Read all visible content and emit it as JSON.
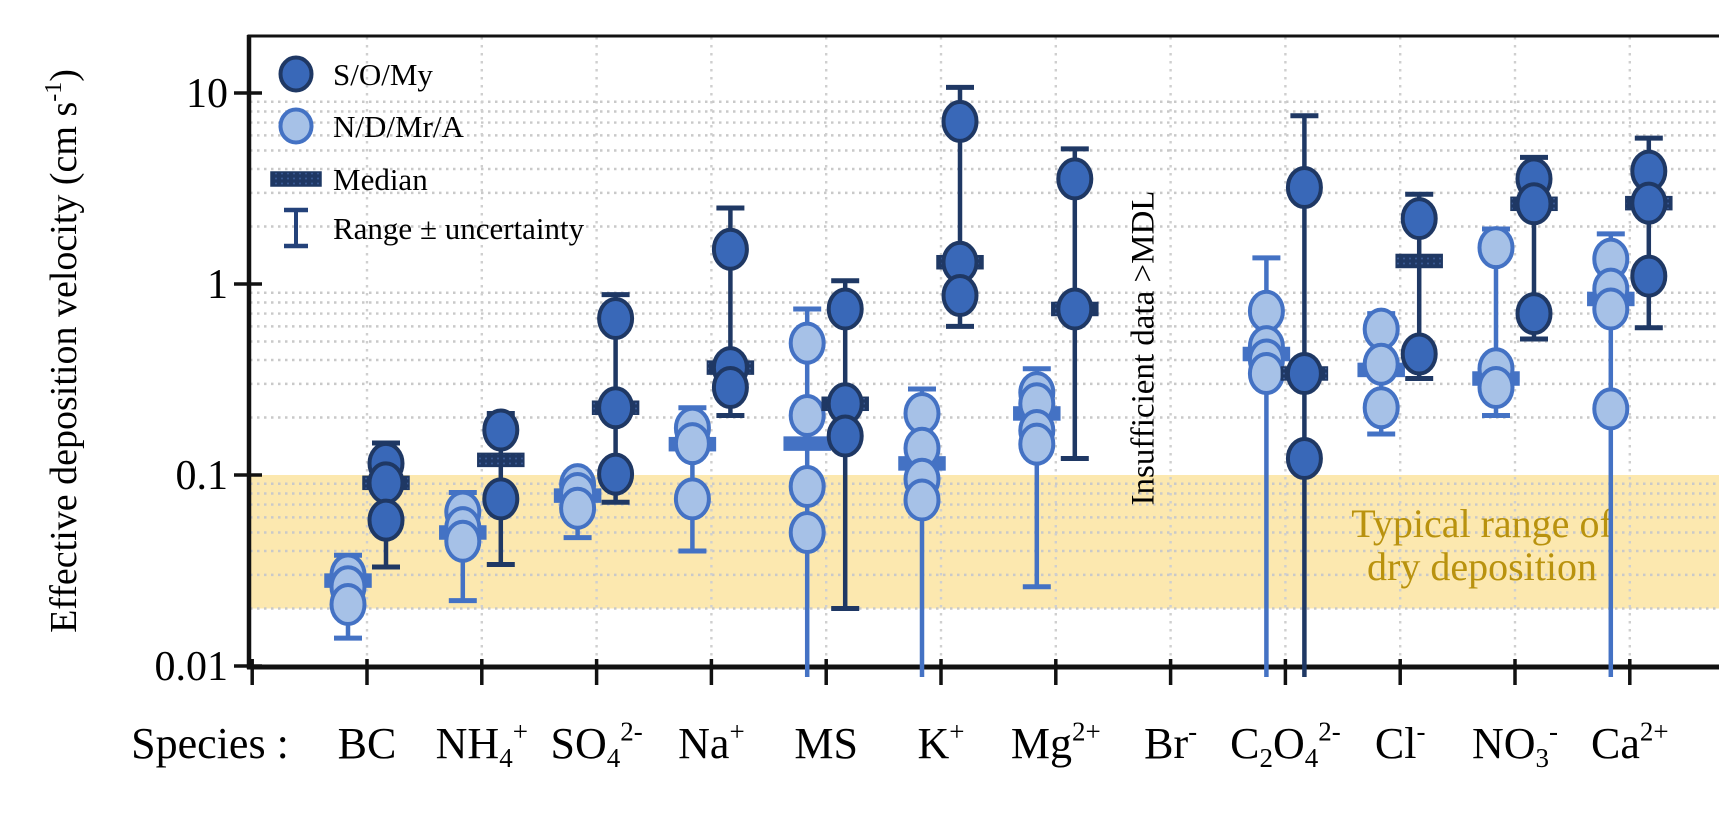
{
  "colors": {
    "dark_fill": "#3968B8",
    "dark_edge": "#1F3864",
    "light_fill": "#A6C1E7",
    "light_edge": "#4472C4",
    "median_dark": "#1F3864",
    "median_dark_dot": "#3A5A96",
    "median_light": "#4472C4",
    "band_fill": "#FCE8AF",
    "band_text": "#B9920E",
    "grid": "#C9C9C9",
    "axis": "#111111",
    "text": "#000000"
  },
  "chart_data": {
    "type": "scatter",
    "yscale": "log",
    "ylabel_plain": "Effective deposition velocity (cm s-1)",
    "ylabel_segments": [
      {
        "text": "Effective deposition velocity (cm s"
      },
      {
        "text": "-1",
        "mode": "sup"
      },
      {
        "text": ")"
      }
    ],
    "xlabel_prefix": "Species :",
    "ylim": [
      0.0095,
      20
    ],
    "yticks": [
      {
        "value": 10,
        "label": "10"
      },
      {
        "value": 1,
        "label": "1"
      },
      {
        "value": 0.1,
        "label": "0.1"
      },
      {
        "value": 0.01,
        "label": "0.01"
      }
    ],
    "grid": "log minor dotted horizontal + dotted vertical per species",
    "legend": [
      {
        "key": "dark",
        "label": "S/O/My"
      },
      {
        "key": "light",
        "label": "N/D/Mr/A"
      },
      {
        "key": "median",
        "label": "Median"
      },
      {
        "key": "range",
        "label": "Range ± uncertainty"
      }
    ],
    "band": {
      "from": 0.02,
      "to": 0.1,
      "label_line1": "Typical range of",
      "label_line2": "dry deposition"
    },
    "annotation": {
      "text": "Insufficient data >MDL",
      "species_index": 7
    },
    "series_names": {
      "dark": "S/O/My",
      "light": "N/D/Mr/A"
    },
    "species": [
      {
        "id": "bc",
        "label_plain": "BC",
        "label_segments": [
          {
            "text": "BC"
          }
        ],
        "light": {
          "points": [
            0.03,
            0.026,
            0.021
          ],
          "median": 0.028,
          "range": [
            0.014,
            0.038
          ]
        },
        "dark": {
          "points": [
            0.115,
            0.091,
            0.058
          ],
          "median": 0.091,
          "range": [
            0.033,
            0.147
          ]
        }
      },
      {
        "id": "nh4",
        "label_plain": "NH4+",
        "label_segments": [
          {
            "text": "NH"
          },
          {
            "text": "4",
            "mode": "sub"
          },
          {
            "text": "+",
            "mode": "sup"
          }
        ],
        "light": {
          "points": [
            0.064,
            0.053,
            0.045
          ],
          "median": 0.05,
          "range": [
            0.022,
            0.081
          ]
        },
        "dark": {
          "points": [
            0.172,
            0.075
          ],
          "median": 0.12,
          "range": [
            0.034,
            0.21
          ]
        }
      },
      {
        "id": "so4",
        "label_plain": "SO42-",
        "label_segments": [
          {
            "text": "SO"
          },
          {
            "text": "4",
            "mode": "sub"
          },
          {
            "text": "2-",
            "mode": "sup"
          }
        ],
        "light": {
          "points": [
            0.089,
            0.08,
            0.067
          ],
          "median": 0.078,
          "range": [
            0.047,
            0.103
          ]
        },
        "dark": {
          "points": [
            0.66,
            0.225,
            0.101
          ],
          "median": 0.225,
          "range": [
            0.072,
            0.88
          ]
        }
      },
      {
        "id": "na",
        "label_plain": "Na+",
        "label_segments": [
          {
            "text": "Na"
          },
          {
            "text": "+",
            "mode": "sup"
          }
        ],
        "light": {
          "points": [
            0.176,
            0.146,
            0.075
          ],
          "median": 0.145,
          "range": [
            0.04,
            0.225
          ]
        },
        "dark": {
          "points": [
            1.52,
            0.365,
            0.287
          ],
          "median": 0.365,
          "range": [
            0.205,
            2.5
          ]
        }
      },
      {
        "id": "ms",
        "label_plain": "MS",
        "label_segments": [
          {
            "text": "MS"
          }
        ],
        "light": {
          "points": [
            0.49,
            0.205,
            0.087,
            0.05
          ],
          "median": 0.146,
          "range": [
            0.0095,
            0.74
          ],
          "range_lo_offscale": true
        },
        "dark": {
          "points": [
            0.74,
            0.236,
            0.16
          ],
          "median": 0.236,
          "range": [
            0.02,
            1.04
          ]
        }
      },
      {
        "id": "k",
        "label_plain": "K+",
        "label_segments": [
          {
            "text": "K"
          },
          {
            "text": "+",
            "mode": "sup"
          }
        ],
        "light": {
          "points": [
            0.21,
            0.138,
            0.095,
            0.074
          ],
          "median": 0.115,
          "range": [
            0.0095,
            0.282
          ],
          "range_lo_offscale": true
        },
        "dark": {
          "points": [
            7.1,
            1.3,
            0.87
          ],
          "median": 1.3,
          "range": [
            0.6,
            10.7
          ]
        }
      },
      {
        "id": "mg",
        "label_plain": "Mg2+",
        "label_segments": [
          {
            "text": "Mg"
          },
          {
            "text": "2+",
            "mode": "sup"
          }
        ],
        "light": {
          "points": [
            0.27,
            0.236,
            0.171,
            0.145
          ],
          "median": 0.21,
          "range": [
            0.026,
            0.36
          ]
        },
        "dark": {
          "points": [
            3.55,
            0.74
          ],
          "median": 0.74,
          "range": [
            0.122,
            5.1
          ]
        }
      },
      {
        "id": "br",
        "label_plain": "Br-",
        "label_segments": [
          {
            "text": "Br"
          },
          {
            "text": "-",
            "mode": "sup"
          }
        ],
        "insufficient": true
      },
      {
        "id": "c2o4",
        "label_plain": "C2O42-",
        "label_segments": [
          {
            "text": "C"
          },
          {
            "text": "2",
            "mode": "sub"
          },
          {
            "text": "O"
          },
          {
            "text": "4",
            "mode": "sub"
          },
          {
            "text": "2-",
            "mode": "sup"
          }
        ],
        "light": {
          "points": [
            0.72,
            0.47,
            0.4,
            0.34
          ],
          "median": 0.43,
          "range": [
            0.0095,
            1.37
          ],
          "range_lo_offscale": true
        },
        "dark": {
          "points": [
            3.2,
            0.34,
            0.122
          ],
          "median": 0.34,
          "range": [
            0.0095,
            7.6
          ],
          "range_lo_offscale": true
        }
      },
      {
        "id": "cl",
        "label_plain": "Cl-",
        "label_segments": [
          {
            "text": "Cl"
          },
          {
            "text": "-",
            "mode": "sup"
          }
        ],
        "light": {
          "points": [
            0.58,
            0.38,
            0.225
          ],
          "median": 0.355,
          "range": [
            0.164,
            0.7
          ]
        },
        "dark": {
          "points": [
            2.2,
            0.43
          ],
          "median": 1.32,
          "range": [
            0.32,
            2.95
          ]
        }
      },
      {
        "id": "no3",
        "label_plain": "NO3-",
        "label_segments": [
          {
            "text": "NO"
          },
          {
            "text": "3",
            "mode": "sub"
          },
          {
            "text": "-",
            "mode": "sup"
          }
        ],
        "light": {
          "points": [
            1.55,
            0.36,
            0.287
          ],
          "median": 0.32,
          "range": [
            0.205,
            1.94
          ]
        },
        "dark": {
          "points": [
            3.55,
            2.63,
            0.7
          ],
          "median": 2.63,
          "range": [
            0.515,
            4.6
          ]
        }
      },
      {
        "id": "ca",
        "label_plain": "Ca2+",
        "label_segments": [
          {
            "text": "Ca"
          },
          {
            "text": "2+",
            "mode": "sup"
          }
        ],
        "light": {
          "points": [
            1.35,
            0.94,
            0.74,
            0.222
          ],
          "median": 0.835,
          "range": [
            0.0095,
            1.83
          ],
          "range_lo_offscale": true
        },
        "dark": {
          "points": [
            3.9,
            2.65,
            1.1
          ],
          "median": 2.65,
          "range": [
            0.59,
            5.8
          ]
        }
      }
    ]
  }
}
